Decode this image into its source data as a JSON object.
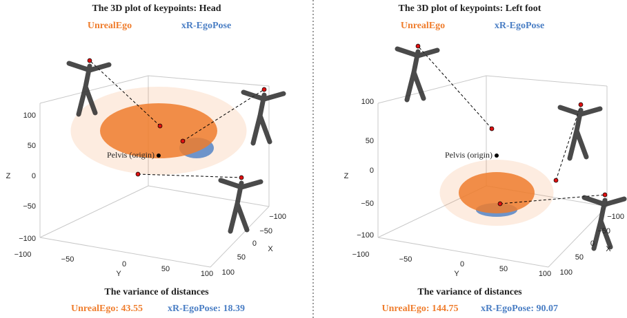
{
  "panels": [
    {
      "title": "The 3D plot of keypoints: Head",
      "legend": [
        "UnrealEgo",
        "xR-EgoPose"
      ],
      "origin_label": "Pelvis (origin)",
      "axis_labels": {
        "z": "Z",
        "y": "Y",
        "x": "X"
      },
      "z_ticks": [
        "100",
        "50",
        "0",
        "−50",
        "−100"
      ],
      "y_ticks": [
        "−100",
        "−50",
        "0",
        "50",
        "100"
      ],
      "x_ticks": [
        "−100",
        "−50",
        "0",
        "50",
        "100"
      ],
      "variance_title": "The variance of distances",
      "variance": [
        "UnrealEgo: 43.55",
        "xR-EgoPose: 18.39"
      ]
    },
    {
      "title": "The 3D plot of keypoints: Left foot",
      "legend": [
        "UnrealEgo",
        "xR-EgoPose"
      ],
      "origin_label": "Pelvis (origin)",
      "axis_labels": {
        "z": "Z",
        "y": "Y",
        "x": "X"
      },
      "z_ticks": [
        "100",
        "50",
        "0",
        "−50",
        "−100"
      ],
      "y_ticks": [
        "−100",
        "−50",
        "0",
        "50",
        "100"
      ],
      "x_ticks": [
        "−100",
        "−50",
        "0",
        "50",
        "100"
      ],
      "variance_title": "The variance of distances",
      "variance": [
        "UnrealEgo: 144.75",
        "xR-EgoPose: 90.07"
      ]
    }
  ]
}
